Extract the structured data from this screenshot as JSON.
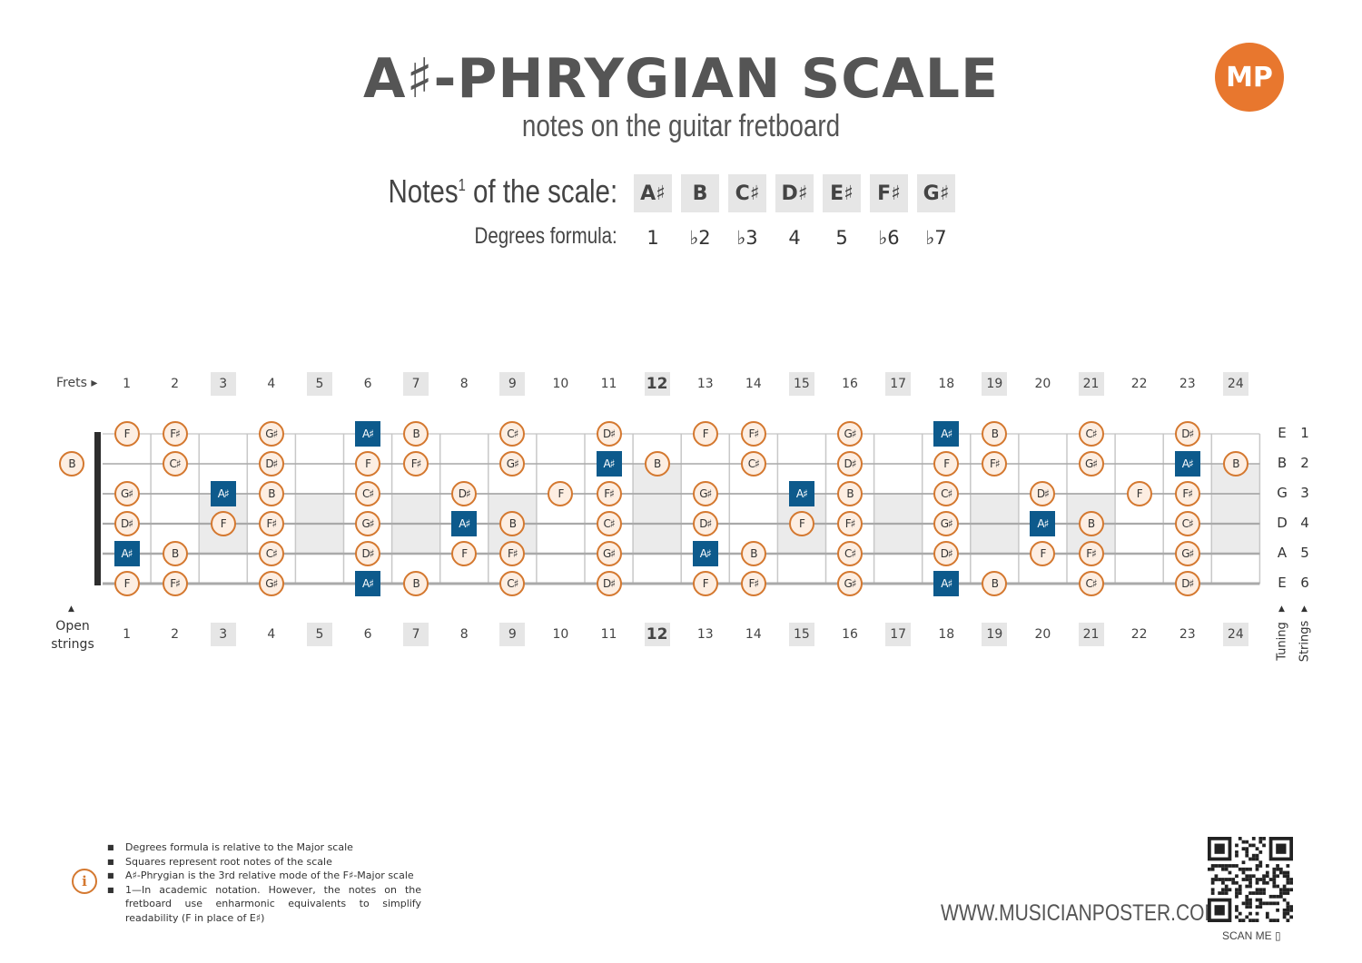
{
  "header": {
    "title": "A♯-PHRYGIAN SCALE",
    "subtitle": "notes on the guitar fretboard",
    "logo_text": "MP"
  },
  "scale": {
    "notes_label": "Notes",
    "notes_sup": "1",
    "notes_label_suffix": " of the scale:",
    "degrees_label": "Degrees formula:",
    "notes": [
      "A♯",
      "B",
      "C♯",
      "D♯",
      "E♯",
      "F♯",
      "G♯"
    ],
    "degrees": [
      "1",
      "♭2",
      "♭3",
      "4",
      "5",
      "♭6",
      "♭7"
    ]
  },
  "fretboard": {
    "frets_label": "Frets",
    "open_label_line1": "Open",
    "open_label_line2": "strings",
    "tuning_label": "Tuning",
    "strings_label": "Strings",
    "fret_numbers": [
      "1",
      "2",
      "3",
      "4",
      "5",
      "6",
      "7",
      "8",
      "9",
      "10",
      "11",
      "12",
      "13",
      "14",
      "15",
      "16",
      "17",
      "18",
      "19",
      "20",
      "21",
      "22",
      "23",
      "24"
    ],
    "marker_frets": [
      3,
      5,
      7,
      9,
      12,
      15,
      17,
      19,
      21,
      24
    ],
    "tuning": [
      "E",
      "B",
      "G",
      "D",
      "A",
      "E"
    ],
    "string_numbers": [
      "1",
      "2",
      "3",
      "4",
      "5",
      "6"
    ],
    "root_note": "A♯",
    "positions": [
      {
        "string": 1,
        "fret": 1,
        "note": "F"
      },
      {
        "string": 1,
        "fret": 2,
        "note": "F♯"
      },
      {
        "string": 1,
        "fret": 4,
        "note": "G♯"
      },
      {
        "string": 1,
        "fret": 6,
        "note": "A♯"
      },
      {
        "string": 1,
        "fret": 7,
        "note": "B"
      },
      {
        "string": 1,
        "fret": 9,
        "note": "C♯"
      },
      {
        "string": 1,
        "fret": 11,
        "note": "D♯"
      },
      {
        "string": 1,
        "fret": 13,
        "note": "F"
      },
      {
        "string": 1,
        "fret": 14,
        "note": "F♯"
      },
      {
        "string": 1,
        "fret": 16,
        "note": "G♯"
      },
      {
        "string": 1,
        "fret": 18,
        "note": "A♯"
      },
      {
        "string": 1,
        "fret": 19,
        "note": "B"
      },
      {
        "string": 1,
        "fret": 21,
        "note": "C♯"
      },
      {
        "string": 1,
        "fret": 23,
        "note": "D♯"
      },
      {
        "string": 2,
        "fret": 0,
        "note": "B"
      },
      {
        "string": 2,
        "fret": 2,
        "note": "C♯"
      },
      {
        "string": 2,
        "fret": 4,
        "note": "D♯"
      },
      {
        "string": 2,
        "fret": 6,
        "note": "F"
      },
      {
        "string": 2,
        "fret": 7,
        "note": "F♯"
      },
      {
        "string": 2,
        "fret": 9,
        "note": "G♯"
      },
      {
        "string": 2,
        "fret": 11,
        "note": "A♯"
      },
      {
        "string": 2,
        "fret": 12,
        "note": "B"
      },
      {
        "string": 2,
        "fret": 14,
        "note": "C♯"
      },
      {
        "string": 2,
        "fret": 16,
        "note": "D♯"
      },
      {
        "string": 2,
        "fret": 18,
        "note": "F"
      },
      {
        "string": 2,
        "fret": 19,
        "note": "F♯"
      },
      {
        "string": 2,
        "fret": 21,
        "note": "G♯"
      },
      {
        "string": 2,
        "fret": 23,
        "note": "A♯"
      },
      {
        "string": 2,
        "fret": 24,
        "note": "B"
      },
      {
        "string": 3,
        "fret": 1,
        "note": "G♯"
      },
      {
        "string": 3,
        "fret": 3,
        "note": "A♯"
      },
      {
        "string": 3,
        "fret": 4,
        "note": "B"
      },
      {
        "string": 3,
        "fret": 6,
        "note": "C♯"
      },
      {
        "string": 3,
        "fret": 8,
        "note": "D♯"
      },
      {
        "string": 3,
        "fret": 10,
        "note": "F"
      },
      {
        "string": 3,
        "fret": 11,
        "note": "F♯"
      },
      {
        "string": 3,
        "fret": 13,
        "note": "G♯"
      },
      {
        "string": 3,
        "fret": 15,
        "note": "A♯"
      },
      {
        "string": 3,
        "fret": 16,
        "note": "B"
      },
      {
        "string": 3,
        "fret": 18,
        "note": "C♯"
      },
      {
        "string": 3,
        "fret": 20,
        "note": "D♯"
      },
      {
        "string": 3,
        "fret": 22,
        "note": "F"
      },
      {
        "string": 3,
        "fret": 23,
        "note": "F♯"
      },
      {
        "string": 4,
        "fret": 1,
        "note": "D♯"
      },
      {
        "string": 4,
        "fret": 3,
        "note": "F"
      },
      {
        "string": 4,
        "fret": 4,
        "note": "F♯"
      },
      {
        "string": 4,
        "fret": 6,
        "note": "G♯"
      },
      {
        "string": 4,
        "fret": 8,
        "note": "A♯"
      },
      {
        "string": 4,
        "fret": 9,
        "note": "B"
      },
      {
        "string": 4,
        "fret": 11,
        "note": "C♯"
      },
      {
        "string": 4,
        "fret": 13,
        "note": "D♯"
      },
      {
        "string": 4,
        "fret": 15,
        "note": "F"
      },
      {
        "string": 4,
        "fret": 16,
        "note": "F♯"
      },
      {
        "string": 4,
        "fret": 18,
        "note": "G♯"
      },
      {
        "string": 4,
        "fret": 20,
        "note": "A♯"
      },
      {
        "string": 4,
        "fret": 21,
        "note": "B"
      },
      {
        "string": 4,
        "fret": 23,
        "note": "C♯"
      },
      {
        "string": 5,
        "fret": 1,
        "note": "A♯"
      },
      {
        "string": 5,
        "fret": 2,
        "note": "B"
      },
      {
        "string": 5,
        "fret": 4,
        "note": "C♯"
      },
      {
        "string": 5,
        "fret": 6,
        "note": "D♯"
      },
      {
        "string": 5,
        "fret": 8,
        "note": "F"
      },
      {
        "string": 5,
        "fret": 9,
        "note": "F♯"
      },
      {
        "string": 5,
        "fret": 11,
        "note": "G♯"
      },
      {
        "string": 5,
        "fret": 13,
        "note": "A♯"
      },
      {
        "string": 5,
        "fret": 14,
        "note": "B"
      },
      {
        "string": 5,
        "fret": 16,
        "note": "C♯"
      },
      {
        "string": 5,
        "fret": 18,
        "note": "D♯"
      },
      {
        "string": 5,
        "fret": 20,
        "note": "F"
      },
      {
        "string": 5,
        "fret": 21,
        "note": "F♯"
      },
      {
        "string": 5,
        "fret": 23,
        "note": "G♯"
      },
      {
        "string": 6,
        "fret": 1,
        "note": "F"
      },
      {
        "string": 6,
        "fret": 2,
        "note": "F♯"
      },
      {
        "string": 6,
        "fret": 4,
        "note": "G♯"
      },
      {
        "string": 6,
        "fret": 6,
        "note": "A♯"
      },
      {
        "string": 6,
        "fret": 7,
        "note": "B"
      },
      {
        "string": 6,
        "fret": 9,
        "note": "C♯"
      },
      {
        "string": 6,
        "fret": 11,
        "note": "D♯"
      },
      {
        "string": 6,
        "fret": 13,
        "note": "F"
      },
      {
        "string": 6,
        "fret": 14,
        "note": "F♯"
      },
      {
        "string": 6,
        "fret": 16,
        "note": "G♯"
      },
      {
        "string": 6,
        "fret": 18,
        "note": "A♯"
      },
      {
        "string": 6,
        "fret": 19,
        "note": "B"
      },
      {
        "string": 6,
        "fret": 21,
        "note": "C♯"
      },
      {
        "string": 6,
        "fret": 23,
        "note": "D♯"
      }
    ]
  },
  "footnotes": [
    "Degrees formula is relative to the Major scale",
    "Squares represent root notes of the scale",
    "A♯-Phrygian is the 3rd relative mode of the F♯-Major scale",
    "1—In academic notation. However, the notes on the fretboard use enharmonic equivalents to simplify readability (F in place of E♯)"
  ],
  "footer": {
    "website": "WWW.MUSICIANPOSTER.COM",
    "scan_me": "SCAN ME"
  },
  "colors": {
    "accent": "#e8772e",
    "root": "#0d5a8c",
    "note_fill": "#fdeee2",
    "note_border": "#d4782f"
  }
}
